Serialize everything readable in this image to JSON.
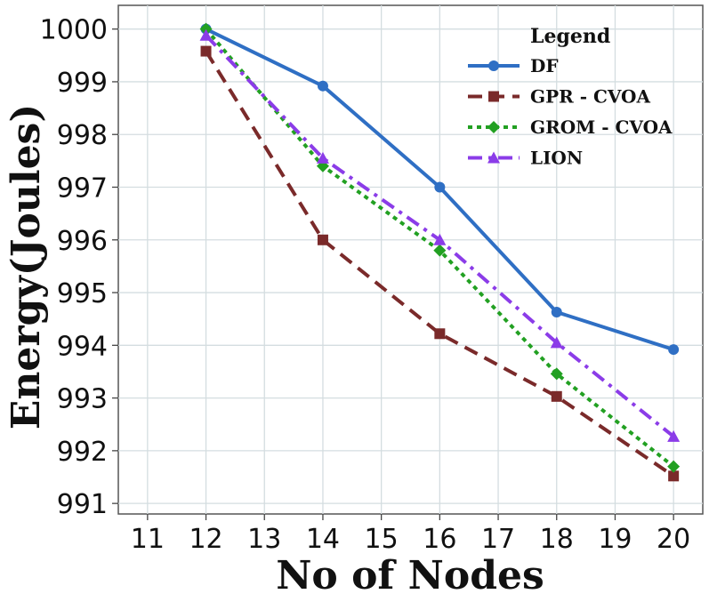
{
  "chart_data": {
    "type": "line",
    "title": "",
    "xlabel": "No of Nodes",
    "ylabel": "Energy(Joules)",
    "xlim": [
      10.5,
      20.5
    ],
    "ylim": [
      990.8,
      1000.45
    ],
    "xticks": [
      11,
      12,
      13,
      14,
      15,
      16,
      17,
      18,
      19,
      20
    ],
    "yticks": [
      991,
      992,
      993,
      994,
      995,
      996,
      997,
      998,
      999,
      1000
    ],
    "grid": true,
    "legend_title": "Legend",
    "legend_position": "top-right",
    "x": [
      12,
      14,
      16,
      18,
      20
    ],
    "series": [
      {
        "name": "DF",
        "values": [
          1000.0,
          998.92,
          997.0,
          994.63,
          993.92
        ],
        "color": "#2f6fc4",
        "dash": "solid",
        "marker": "circle"
      },
      {
        "name": "GPR - CVOA",
        "values": [
          999.58,
          996.0,
          994.22,
          993.03,
          991.52
        ],
        "color": "#7a2a2a",
        "dash": "dashed",
        "marker": "square"
      },
      {
        "name": "GROM - CVOA",
        "values": [
          1000.0,
          997.4,
          995.8,
          993.46,
          991.7
        ],
        "color": "#22a022",
        "dash": "dotted",
        "marker": "diamond"
      },
      {
        "name": "LION",
        "values": [
          999.88,
          997.55,
          996.0,
          994.05,
          992.27
        ],
        "color": "#8b3ce8",
        "dash": "dashdot",
        "marker": "triangle"
      }
    ]
  }
}
